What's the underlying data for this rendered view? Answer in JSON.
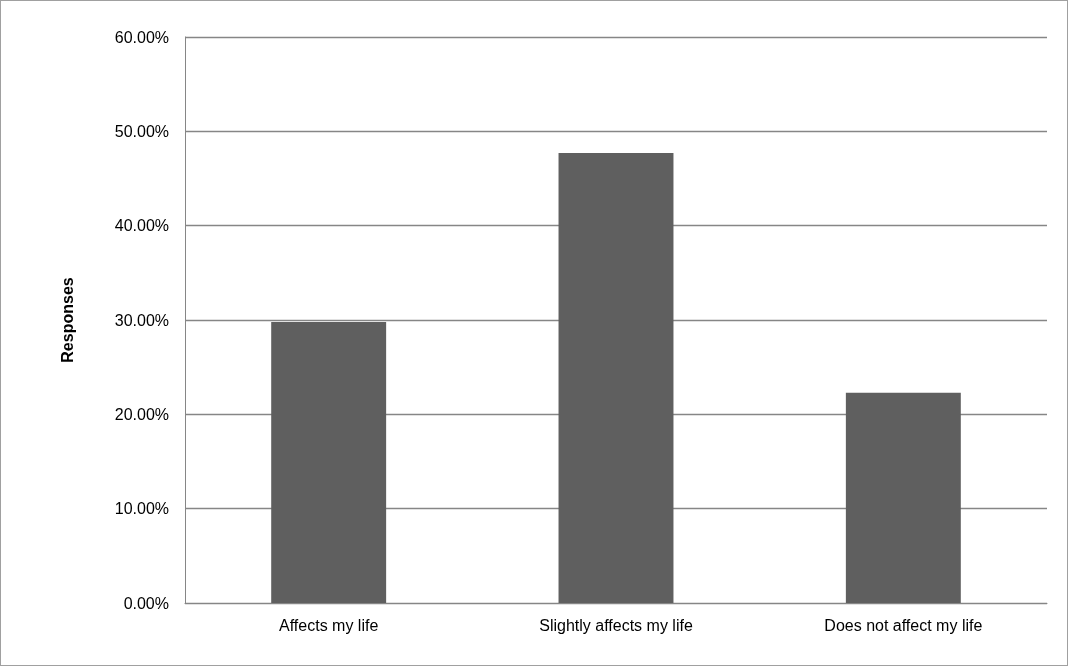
{
  "chart_data": {
    "type": "bar",
    "ylabel": "Responses",
    "categories": [
      "Affects my life",
      "Slightly affects my life",
      "Does not affect my life"
    ],
    "values": [
      29.8,
      47.7,
      22.3
    ],
    "color": "#5f5f5f",
    "ylim": [
      0,
      60
    ],
    "yticks": [
      {
        "value": 0,
        "label": "0.00%"
      },
      {
        "value": 10,
        "label": "10.00%"
      },
      {
        "value": 20,
        "label": "20.00%"
      },
      {
        "value": 30,
        "label": "30.00%"
      },
      {
        "value": 40,
        "label": "40.00%"
      },
      {
        "value": 50,
        "label": "50.00%"
      },
      {
        "value": 60,
        "label": "60.00%"
      }
    ],
    "grid": "y"
  }
}
